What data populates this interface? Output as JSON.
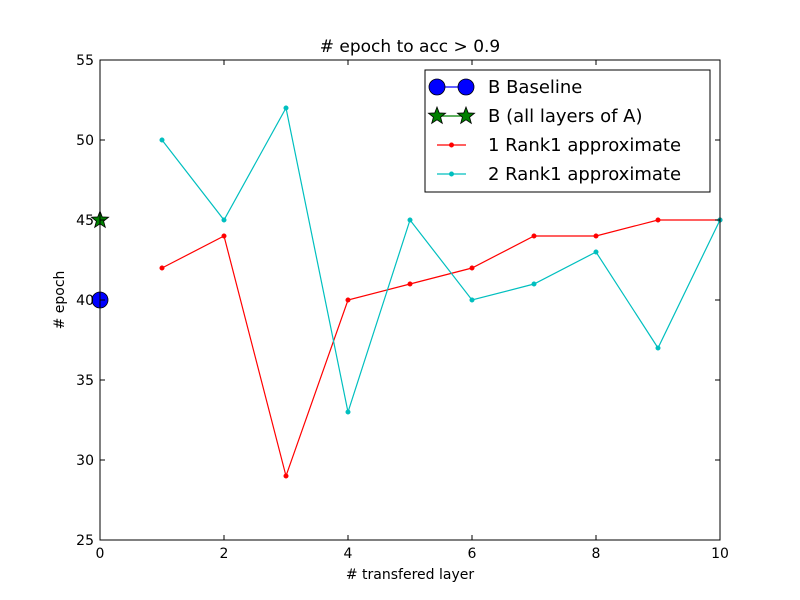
{
  "chart_data": {
    "type": "line",
    "title": "# epoch to acc > 0.9",
    "xlabel": "# transfered layer",
    "ylabel": "# epoch",
    "xlim": [
      0,
      10
    ],
    "ylim": [
      25,
      55
    ],
    "xticks": [
      0,
      2,
      4,
      6,
      8,
      10
    ],
    "yticks": [
      25,
      30,
      35,
      40,
      45,
      50,
      55
    ],
    "grid": false,
    "legend_position": "top-right",
    "series": [
      {
        "name": "B Baseline",
        "color": "#0000ff",
        "marker": "circle",
        "x": [
          0
        ],
        "y": [
          40
        ]
      },
      {
        "name": "B (all layers of A)",
        "color": "#008000",
        "marker": "star",
        "x": [
          0
        ],
        "y": [
          45
        ]
      },
      {
        "name": "1 Rank1 approximate",
        "color": "#ff0000",
        "marker": "dot",
        "x": [
          1,
          2,
          3,
          4,
          5,
          6,
          7,
          8,
          9,
          10
        ],
        "y": [
          42,
          44,
          29,
          40,
          41,
          42,
          44,
          44,
          45,
          45
        ]
      },
      {
        "name": "2 Rank1 approximate",
        "color": "#00bfbf",
        "marker": "dot",
        "x": [
          1,
          2,
          3,
          4,
          5,
          6,
          7,
          8,
          9,
          10
        ],
        "y": [
          50,
          45,
          52,
          33,
          45,
          40,
          41,
          43,
          37,
          45
        ]
      }
    ]
  }
}
